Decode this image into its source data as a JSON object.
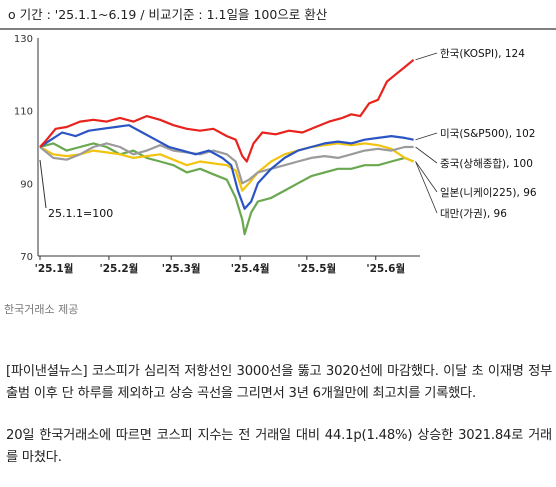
{
  "chart_data": {
    "type": "line",
    "title": "o 기간 : '25.1.1~6.19 / 비교기준 : 1.1일을 100으로 환산",
    "ylim": [
      70,
      130
    ],
    "yticks": [
      70,
      90,
      110,
      130
    ],
    "xticks": [
      {
        "label": "'25.1월",
        "day": 0
      },
      {
        "label": "'25.2월",
        "day": 31
      },
      {
        "label": "'25.3월",
        "day": 59
      },
      {
        "label": "'25.4월",
        "day": 90
      },
      {
        "label": "'25.5월",
        "day": 120
      },
      {
        "label": "'25.6월",
        "day": 151
      }
    ],
    "x_end_day": 170,
    "annotation": "25.1.1=100",
    "grid": false,
    "series": [
      {
        "name": "한국(KOSPI), 124",
        "color": "#e8231e",
        "points": [
          [
            0,
            100
          ],
          [
            3,
            102
          ],
          [
            7,
            105
          ],
          [
            12,
            105.5
          ],
          [
            18,
            107
          ],
          [
            24,
            107.5
          ],
          [
            30,
            107
          ],
          [
            36,
            108
          ],
          [
            42,
            107
          ],
          [
            48,
            108.5
          ],
          [
            54,
            107.5
          ],
          [
            60,
            106
          ],
          [
            66,
            105
          ],
          [
            72,
            104.5
          ],
          [
            78,
            105
          ],
          [
            84,
            103
          ],
          [
            88,
            102
          ],
          [
            91,
            97.5
          ],
          [
            93,
            96
          ],
          [
            96,
            101
          ],
          [
            100,
            104
          ],
          [
            106,
            103.5
          ],
          [
            112,
            104.5
          ],
          [
            118,
            104
          ],
          [
            124,
            105.5
          ],
          [
            130,
            107
          ],
          [
            136,
            108
          ],
          [
            140,
            109
          ],
          [
            144,
            108.5
          ],
          [
            148,
            112
          ],
          [
            152,
            113
          ],
          [
            156,
            118
          ],
          [
            160,
            120
          ],
          [
            164,
            122
          ],
          [
            168,
            124
          ]
        ]
      },
      {
        "name": "미국(S&P500), 102",
        "color": "#2b55c4",
        "points": [
          [
            0,
            100
          ],
          [
            5,
            102
          ],
          [
            10,
            104
          ],
          [
            16,
            103
          ],
          [
            22,
            104.5
          ],
          [
            28,
            105
          ],
          [
            34,
            105.5
          ],
          [
            40,
            106
          ],
          [
            46,
            104
          ],
          [
            52,
            102
          ],
          [
            58,
            100
          ],
          [
            64,
            99
          ],
          [
            70,
            98
          ],
          [
            76,
            99
          ],
          [
            82,
            97
          ],
          [
            86,
            95
          ],
          [
            89,
            88
          ],
          [
            92,
            83
          ],
          [
            95,
            85
          ],
          [
            98,
            90
          ],
          [
            104,
            94
          ],
          [
            110,
            97
          ],
          [
            116,
            99
          ],
          [
            122,
            100
          ],
          [
            128,
            101
          ],
          [
            134,
            101.5
          ],
          [
            140,
            101
          ],
          [
            146,
            102
          ],
          [
            152,
            102.5
          ],
          [
            158,
            103
          ],
          [
            164,
            102.5
          ],
          [
            168,
            102
          ]
        ]
      },
      {
        "name": "중국(상해종합), 100",
        "color": "#9b9b9b",
        "points": [
          [
            0,
            100
          ],
          [
            6,
            97
          ],
          [
            12,
            96.5
          ],
          [
            18,
            98
          ],
          [
            24,
            100
          ],
          [
            30,
            101
          ],
          [
            36,
            100
          ],
          [
            42,
            98
          ],
          [
            48,
            99
          ],
          [
            54,
            100.5
          ],
          [
            60,
            99
          ],
          [
            66,
            98.5
          ],
          [
            72,
            98
          ],
          [
            78,
            99
          ],
          [
            84,
            98
          ],
          [
            88,
            96
          ],
          [
            91,
            90
          ],
          [
            94,
            91
          ],
          [
            98,
            93
          ],
          [
            104,
            94
          ],
          [
            110,
            95
          ],
          [
            116,
            96
          ],
          [
            122,
            97
          ],
          [
            128,
            97.5
          ],
          [
            134,
            97
          ],
          [
            140,
            98
          ],
          [
            146,
            99
          ],
          [
            152,
            99.5
          ],
          [
            158,
            99
          ],
          [
            164,
            100
          ],
          [
            168,
            100
          ]
        ]
      },
      {
        "name": "일본(니케이225), 96",
        "color": "#f2c40f",
        "points": [
          [
            0,
            100
          ],
          [
            6,
            98
          ],
          [
            12,
            97.5
          ],
          [
            18,
            98
          ],
          [
            24,
            99
          ],
          [
            30,
            98.5
          ],
          [
            36,
            98
          ],
          [
            42,
            97
          ],
          [
            48,
            97.5
          ],
          [
            54,
            98
          ],
          [
            60,
            96.5
          ],
          [
            66,
            95
          ],
          [
            72,
            96
          ],
          [
            78,
            95.5
          ],
          [
            84,
            95
          ],
          [
            88,
            93.5
          ],
          [
            91,
            88
          ],
          [
            94,
            90
          ],
          [
            98,
            93
          ],
          [
            104,
            96
          ],
          [
            110,
            98
          ],
          [
            116,
            99
          ],
          [
            122,
            100
          ],
          [
            128,
            100.5
          ],
          [
            134,
            101
          ],
          [
            140,
            100.5
          ],
          [
            146,
            101
          ],
          [
            152,
            100.5
          ],
          [
            158,
            99.5
          ],
          [
            164,
            97
          ],
          [
            168,
            96
          ]
        ]
      },
      {
        "name": "대만(가권), 96",
        "color": "#6aa84f",
        "points": [
          [
            0,
            100
          ],
          [
            6,
            101
          ],
          [
            12,
            99
          ],
          [
            18,
            100
          ],
          [
            24,
            101
          ],
          [
            30,
            100
          ],
          [
            36,
            98
          ],
          [
            42,
            99
          ],
          [
            48,
            97
          ],
          [
            54,
            96
          ],
          [
            60,
            95
          ],
          [
            66,
            93
          ],
          [
            72,
            94
          ],
          [
            78,
            92.5
          ],
          [
            84,
            91
          ],
          [
            88,
            86
          ],
          [
            91,
            80
          ],
          [
            92,
            76
          ],
          [
            95,
            82
          ],
          [
            98,
            85
          ],
          [
            104,
            86
          ],
          [
            110,
            88
          ],
          [
            116,
            90
          ],
          [
            122,
            92
          ],
          [
            128,
            93
          ],
          [
            134,
            94
          ],
          [
            140,
            94
          ],
          [
            146,
            95
          ],
          [
            152,
            95
          ],
          [
            158,
            96
          ],
          [
            164,
            97
          ],
          [
            168,
            96
          ]
        ]
      }
    ]
  },
  "source": "한국거래소 제공",
  "article": {
    "p1": "[파이낸셜뉴스] 코스피가 심리적 저항선인 3000선을 뚫고 3020선에 마감했다. 이달 초 이재명 정부 출범 이후 단 하루를 제외하고 상승 곡선을 그리면서 3년 6개월만에 최고치를 기록했다.",
    "p2": "20일 한국거래소에 따르면 코스피 지수는 전 거래일 대비 44.1p(1.48%) 상승한 3021.84로 거래를 마쳤다."
  }
}
